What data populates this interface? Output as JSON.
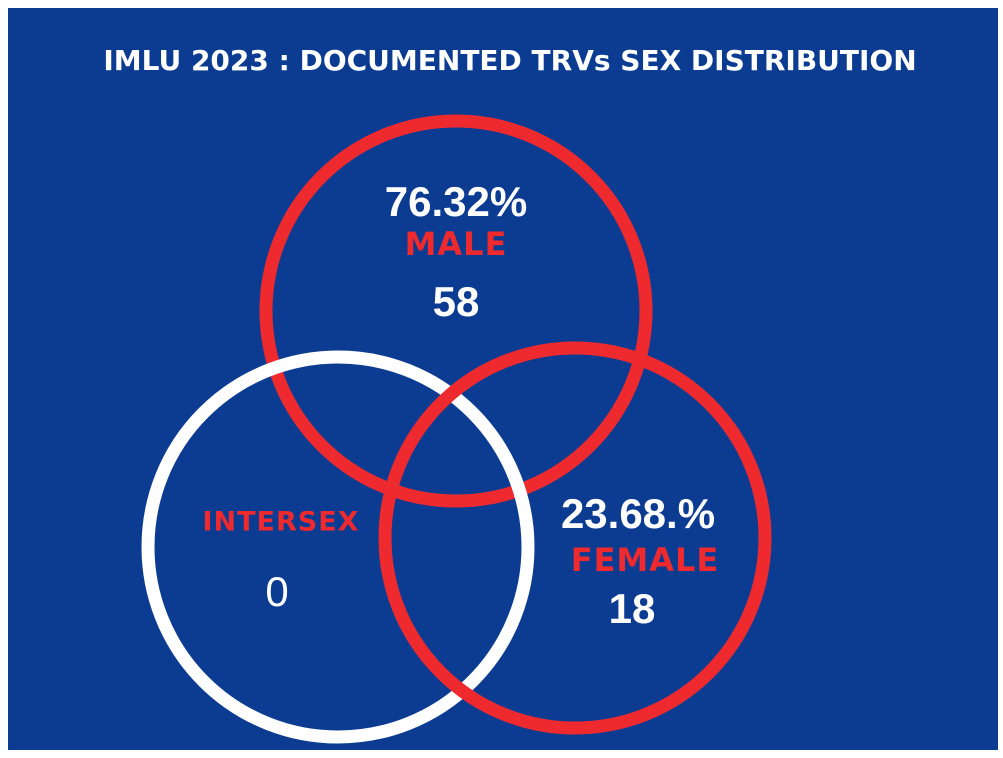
{
  "title": "IMLU 2023 : DOCUMENTED TRVs SEX DISTRIBUTION",
  "sets": [
    {
      "label": "MALE",
      "percent": "76.32%",
      "count": 58
    },
    {
      "label": "INTERSEX",
      "count": 0
    },
    {
      "label": "FEMALE",
      "percent": "23.68.%",
      "count": 18
    }
  ]
}
